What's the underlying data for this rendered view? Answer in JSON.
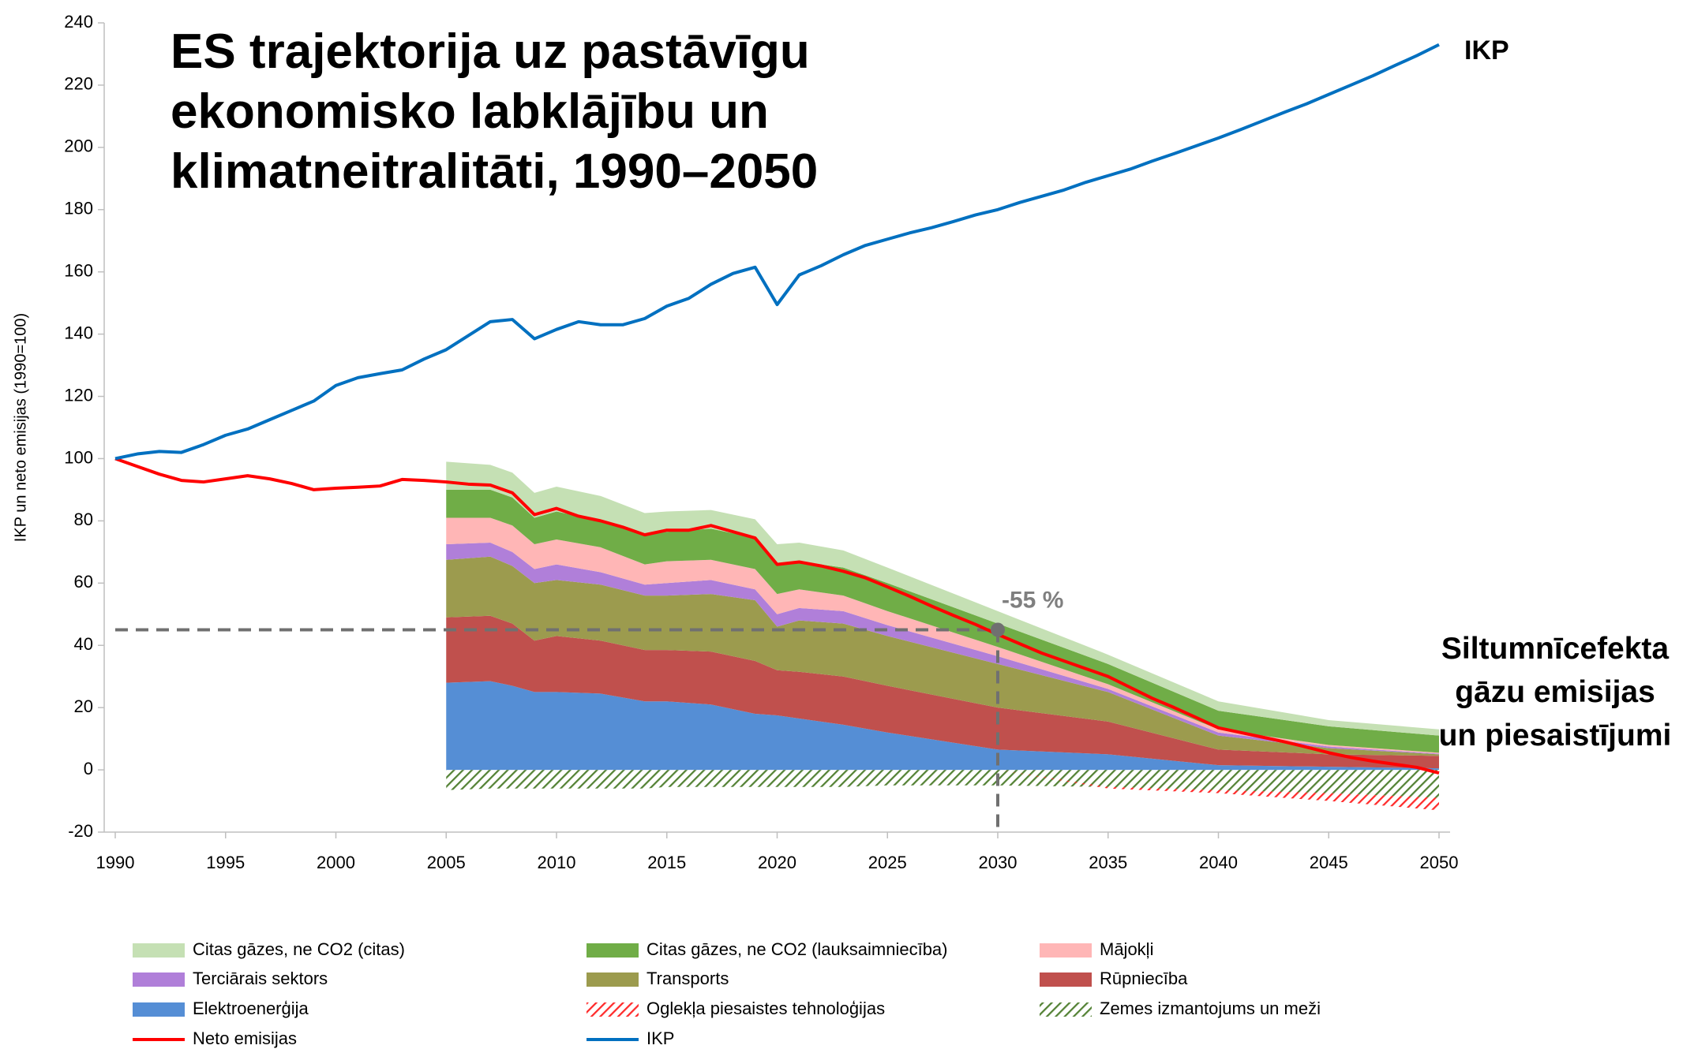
{
  "chart_data": {
    "type": "area",
    "title": "ES trajektorija uz pastāvīgu ekonomisko labklājību un klimatneitralitāti, 1990–2050",
    "y_label": "IKP un neto emisijas (1990=100)",
    "side_label": "Siltumnīcefekta gāzu emisijas un piesaistījumi",
    "line_label": "IKP",
    "target": {
      "x": 2030,
      "value": 45,
      "label": "-55 %"
    },
    "xlim": [
      1990,
      2050
    ],
    "xticks": [
      1990,
      1995,
      2000,
      2005,
      2010,
      2015,
      2020,
      2025,
      2030,
      2035,
      2040,
      2045,
      2050
    ],
    "ylim": [
      -20,
      240
    ],
    "yticks": [
      -20,
      0,
      20,
      40,
      60,
      80,
      100,
      120,
      140,
      160,
      180,
      200,
      220,
      240
    ],
    "grid": false,
    "series": [
      {
        "name": "Citas gāzes, ne CO2 (citas)",
        "type": "area",
        "color": "#c5e0b4",
        "x": [
          2005,
          2007,
          2008,
          2009,
          2010,
          2012,
          2014,
          2015,
          2017,
          2019,
          2020,
          2021,
          2023,
          2025,
          2030,
          2035,
          2040,
          2045,
          2050
        ],
        "values": [
          9,
          8,
          8,
          8,
          8,
          8,
          7,
          6.5,
          6,
          6,
          6.5,
          6,
          5.5,
          5,
          4,
          3,
          3,
          2,
          2
        ]
      },
      {
        "name": "Citas gāzes, ne CO2 (lauksaimniecība)",
        "type": "area",
        "color": "#70ad47",
        "x": [
          2005,
          2007,
          2008,
          2009,
          2010,
          2012,
          2014,
          2015,
          2017,
          2019,
          2020,
          2021,
          2023,
          2025,
          2030,
          2035,
          2040,
          2045,
          2050
        ],
        "values": [
          9,
          9,
          9,
          8.5,
          9,
          8.5,
          9.5,
          9.5,
          10,
          10,
          9.5,
          9,
          9,
          9,
          7.5,
          6.5,
          6,
          6,
          5.5
        ]
      },
      {
        "name": "Mājokļi",
        "type": "area",
        "color": "#ffb6b6",
        "x": [
          2005,
          2007,
          2008,
          2009,
          2010,
          2012,
          2014,
          2015,
          2017,
          2019,
          2020,
          2021,
          2023,
          2025,
          2030,
          2035,
          2040,
          2045,
          2050
        ],
        "values": [
          8.5,
          8,
          8.5,
          8,
          8,
          8,
          6.5,
          7,
          6.5,
          6.5,
          6.5,
          6,
          5,
          4.5,
          3,
          1.5,
          1,
          0.5,
          0.3
        ]
      },
      {
        "name": "Terciārais sektors",
        "type": "area",
        "color": "#b07fd9",
        "x": [
          2005,
          2007,
          2008,
          2009,
          2010,
          2012,
          2014,
          2015,
          2017,
          2019,
          2020,
          2021,
          2023,
          2025,
          2030,
          2035,
          2040,
          2045,
          2050
        ],
        "values": [
          5,
          4.5,
          4.5,
          4.5,
          5,
          4,
          3.5,
          4,
          4.5,
          3.5,
          4,
          4,
          4,
          3.5,
          2.5,
          1,
          1,
          0.5,
          0.2
        ]
      },
      {
        "name": "Transports",
        "type": "area",
        "color": "#9c9b4e",
        "x": [
          2005,
          2007,
          2008,
          2009,
          2010,
          2012,
          2014,
          2015,
          2017,
          2019,
          2020,
          2021,
          2023,
          2025,
          2030,
          2035,
          2040,
          2045,
          2050
        ],
        "values": [
          18.5,
          19,
          18.5,
          18.5,
          18,
          18,
          17.5,
          17.5,
          18.5,
          19.5,
          14,
          16.5,
          17,
          16,
          14,
          9.5,
          4.5,
          2,
          0.5
        ]
      },
      {
        "name": "Rūpniecība",
        "type": "area",
        "color": "#c0504d",
        "x": [
          2005,
          2007,
          2008,
          2009,
          2010,
          2012,
          2014,
          2015,
          2017,
          2019,
          2020,
          2021,
          2023,
          2025,
          2030,
          2035,
          2040,
          2045,
          2050
        ],
        "values": [
          21,
          21,
          20,
          16.5,
          18,
          17,
          16.5,
          16.5,
          17,
          17,
          14.5,
          15,
          15.5,
          15,
          13.5,
          10.5,
          5,
          4,
          4
        ]
      },
      {
        "name": "Elektroenerģija",
        "type": "area",
        "color": "#558ed5",
        "x": [
          2005,
          2007,
          2008,
          2009,
          2010,
          2012,
          2014,
          2015,
          2017,
          2019,
          2020,
          2021,
          2023,
          2025,
          2030,
          2035,
          2040,
          2045,
          2050
        ],
        "values": [
          28,
          28.5,
          27,
          25,
          25,
          24.5,
          22,
          22,
          21,
          18,
          17.5,
          16.5,
          14.5,
          12,
          6.5,
          5,
          1.5,
          1,
          0.5
        ]
      },
      {
        "name": "Oglekļa piesaistes tehnoloģijas",
        "type": "area",
        "pattern": "hatch",
        "color": "#ff2a2a",
        "x": [
          2005,
          2007,
          2008,
          2009,
          2010,
          2012,
          2014,
          2015,
          2017,
          2019,
          2020,
          2021,
          2023,
          2025,
          2030,
          2035,
          2040,
          2045,
          2050
        ],
        "values": [
          0,
          0,
          0,
          0,
          0,
          0,
          0,
          0,
          0,
          0,
          0,
          0,
          0,
          0,
          0,
          -0.5,
          -1,
          -2.5,
          -4
        ]
      },
      {
        "name": "Zemes izmantojums un meži",
        "type": "area",
        "pattern": "hatch",
        "color": "#548235",
        "x": [
          2005,
          2007,
          2008,
          2009,
          2010,
          2012,
          2014,
          2015,
          2017,
          2019,
          2020,
          2021,
          2023,
          2025,
          2030,
          2035,
          2040,
          2045,
          2050
        ],
        "values": [
          -6.5,
          -6,
          -6,
          -6,
          -6,
          -6,
          -6,
          -5.5,
          -5.5,
          -5.5,
          -5.5,
          -5.5,
          -5.5,
          -5,
          -5,
          -5.5,
          -6.5,
          -7.5,
          -9
        ]
      },
      {
        "name": "Neto emisijas",
        "type": "line",
        "color": "#ff0000",
        "x": [
          1990,
          1991,
          1992,
          1993,
          1994,
          1995,
          1996,
          1997,
          1998,
          1999,
          2000,
          2001,
          2002,
          2003,
          2004,
          2005,
          2006,
          2007,
          2008,
          2009,
          2010,
          2011,
          2012,
          2013,
          2014,
          2015,
          2016,
          2017,
          2018,
          2019,
          2020,
          2021,
          2022,
          2023,
          2024,
          2025,
          2026,
          2027,
          2028,
          2029,
          2030,
          2031,
          2032,
          2033,
          2034,
          2035,
          2036,
          2037,
          2038,
          2039,
          2040,
          2041,
          2042,
          2043,
          2044,
          2045,
          2046,
          2047,
          2048,
          2049,
          2050
        ],
        "values": [
          100,
          97.5,
          95,
          93,
          92.5,
          93.5,
          94.5,
          93.5,
          92,
          90,
          90.5,
          90.8,
          91.2,
          93.3,
          93,
          92.5,
          91.8,
          91.5,
          89,
          82,
          84,
          81.5,
          80,
          78,
          75.5,
          77,
          77,
          78.5,
          76.5,
          74.5,
          66,
          66.8,
          65.5,
          63.8,
          61.7,
          58.8,
          55.8,
          52.6,
          49.6,
          46.7,
          43.5,
          40.5,
          37.5,
          35,
          32.5,
          30,
          26.5,
          23,
          20,
          16.8,
          13.5,
          12,
          10.5,
          9,
          7.3,
          5.5,
          4,
          2.8,
          1.8,
          0.8,
          -1
        ]
      },
      {
        "name": "IKP",
        "type": "line",
        "color": "#0070c0",
        "x": [
          1990,
          1991,
          1992,
          1993,
          1994,
          1995,
          1996,
          1997,
          1998,
          1999,
          2000,
          2001,
          2002,
          2003,
          2004,
          2005,
          2006,
          2007,
          2008,
          2009,
          2010,
          2011,
          2012,
          2013,
          2014,
          2015,
          2016,
          2017,
          2018,
          2019,
          2020,
          2021,
          2022,
          2023,
          2024,
          2025,
          2026,
          2027,
          2028,
          2029,
          2030,
          2031,
          2032,
          2033,
          2034,
          2035,
          2036,
          2037,
          2038,
          2039,
          2040,
          2041,
          2042,
          2043,
          2044,
          2045,
          2046,
          2047,
          2048,
          2049,
          2050
        ],
        "values": [
          100,
          101.5,
          102.3,
          102,
          104.5,
          107.5,
          109.5,
          112.5,
          115.5,
          118.5,
          123.5,
          126,
          127.3,
          128.5,
          132,
          135,
          139.5,
          144,
          144.7,
          138.5,
          141.5,
          144,
          143,
          143,
          145,
          149,
          151.5,
          156,
          159.5,
          161.5,
          149.5,
          159,
          162,
          165.5,
          168.5,
          170.5,
          172.5,
          174.2,
          176.2,
          178.3,
          180,
          182.3,
          184.3,
          186.3,
          188.8,
          190.9,
          193,
          195.6,
          198,
          200.5,
          203,
          205.7,
          208.5,
          211.3,
          214,
          217,
          220,
          223,
          226.3,
          229.5,
          233
        ]
      }
    ]
  }
}
